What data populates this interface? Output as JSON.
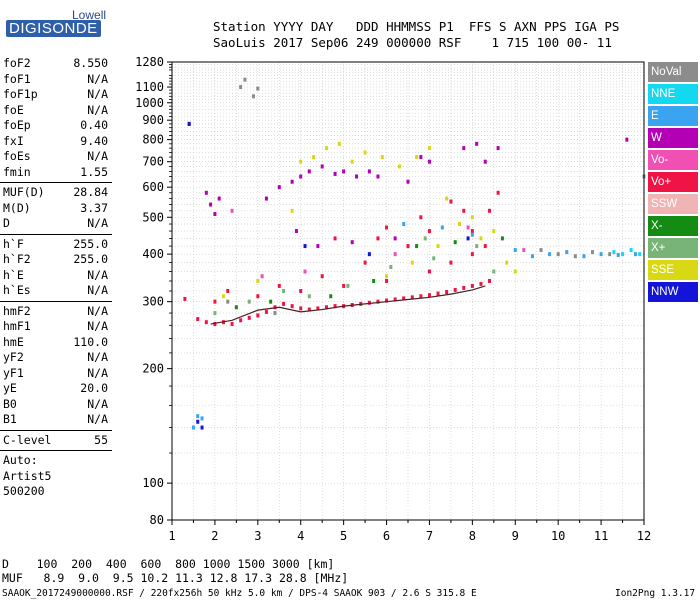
{
  "logo": {
    "top": "Lowell",
    "main": "DIGISONDE"
  },
  "header": {
    "line1": "Station YYYY DAY   DDD HHMMSS P1  FFS S AXN PPS IGA PS",
    "line2": "SaoLuis 2017 Sep06 249 000000 RSF    1 715 100 00- 11"
  },
  "params": [
    {
      "k": "foF2",
      "v": "8.550"
    },
    {
      "k": "foF1",
      "v": "N/A"
    },
    {
      "k": "foF1p",
      "v": "N/A"
    },
    {
      "k": "foE",
      "v": "N/A"
    },
    {
      "k": "foEp",
      "v": "0.40"
    },
    {
      "k": "fxI",
      "v": "9.40"
    },
    {
      "k": "foEs",
      "v": "N/A"
    },
    {
      "k": "fmin",
      "v": "1.55"
    },
    {
      "k": "MUF(D)",
      "v": "28.84"
    },
    {
      "k": "M(D)",
      "v": "3.37"
    },
    {
      "k": "D",
      "v": "N/A"
    },
    {
      "k": "h`F",
      "v": "255.0"
    },
    {
      "k": "h`F2",
      "v": "255.0"
    },
    {
      "k": "h`E",
      "v": "N/A"
    },
    {
      "k": "h`Es",
      "v": "N/A"
    },
    {
      "k": "hmF2",
      "v": "N/A"
    },
    {
      "k": "hmF1",
      "v": "N/A"
    },
    {
      "k": "hmE",
      "v": "110.0"
    },
    {
      "k": "yF2",
      "v": "N/A"
    },
    {
      "k": "yF1",
      "v": "N/A"
    },
    {
      "k": "yE",
      "v": "20.0"
    },
    {
      "k": "B0",
      "v": "N/A"
    },
    {
      "k": "B1",
      "v": "N/A"
    },
    {
      "k": "C-level",
      "v": "55"
    }
  ],
  "auto": [
    "Auto:",
    "Artist5",
    "500200"
  ],
  "legend": [
    {
      "label": "NoVal",
      "color": "#8c8c8c"
    },
    {
      "label": "NNE",
      "color": "#14d8f0"
    },
    {
      "label": "E",
      "color": "#3aa4f0"
    },
    {
      "label": "W",
      "color": "#b400b4"
    },
    {
      "label": "Vo-",
      "color": "#f050b4"
    },
    {
      "label": "Vo+",
      "color": "#f01446"
    },
    {
      "label": "SSW",
      "color": "#f0b4b4"
    },
    {
      "label": "X-",
      "color": "#148c14"
    },
    {
      "label": "X+",
      "color": "#78b478"
    },
    {
      "label": "SSE",
      "color": "#d8d814"
    },
    {
      "label": "NNW",
      "color": "#1414d8"
    }
  ],
  "footer": {
    "line1": "D    100  200  400  600  800 1000 1500 3000 [km]",
    "line2": "MUF   8.9  9.0  9.5 10.2 11.3 12.8 17.3 28.8 [MHz]",
    "file": "SAAOK_2017249000000.RSF / 220fx256h 50 kHz 5.0 km / DPS-4 SAAOK 903 / 2.6 S 315.8 E",
    "version": "Ion2Png 1.3.17"
  },
  "chart_data": {
    "type": "scatter",
    "title": "",
    "xlabel": "",
    "ylabel": "",
    "xlim": [
      1,
      12
    ],
    "ylim": [
      80,
      1280
    ],
    "y_scale": "log",
    "grid": true,
    "xticks": [
      1,
      2,
      3,
      4,
      5,
      6,
      7,
      8,
      9,
      10,
      11,
      12
    ],
    "yticks": [
      80,
      100,
      200,
      300,
      400,
      500,
      600,
      700,
      800,
      900,
      1000,
      1100,
      1280
    ],
    "series": [
      {
        "name": "Vo+",
        "color": "#f01446",
        "points": [
          [
            1.3,
            305
          ],
          [
            1.6,
            270
          ],
          [
            1.8,
            265
          ],
          [
            2.0,
            262
          ],
          [
            2.2,
            265
          ],
          [
            2.4,
            262
          ],
          [
            2.6,
            268
          ],
          [
            2.8,
            272
          ],
          [
            3.0,
            276
          ],
          [
            3.2,
            282
          ],
          [
            3.4,
            290
          ],
          [
            3.6,
            296
          ],
          [
            3.8,
            292
          ],
          [
            4.0,
            288
          ],
          [
            4.2,
            286
          ],
          [
            4.4,
            288
          ],
          [
            4.6,
            290
          ],
          [
            4.8,
            292
          ],
          [
            5.0,
            292
          ],
          [
            5.2,
            294
          ],
          [
            5.4,
            296
          ],
          [
            5.6,
            298
          ],
          [
            5.8,
            300
          ],
          [
            6.0,
            302
          ],
          [
            6.2,
            304
          ],
          [
            6.4,
            306
          ],
          [
            6.6,
            308
          ],
          [
            6.8,
            310
          ],
          [
            7.0,
            312
          ],
          [
            7.2,
            315
          ],
          [
            7.4,
            318
          ],
          [
            7.6,
            322
          ],
          [
            7.8,
            326
          ],
          [
            8.0,
            330
          ],
          [
            8.2,
            334
          ],
          [
            8.4,
            340
          ],
          [
            2.0,
            300
          ],
          [
            2.3,
            320
          ],
          [
            3.0,
            310
          ],
          [
            4.0,
            320
          ],
          [
            5.0,
            330
          ],
          [
            6.0,
            340
          ],
          [
            7.0,
            360
          ],
          [
            7.5,
            380
          ],
          [
            8.0,
            400
          ],
          [
            8.3,
            420
          ],
          [
            6.5,
            420
          ],
          [
            5.5,
            380
          ],
          [
            4.5,
            350
          ],
          [
            3.5,
            330
          ],
          [
            7.0,
            460
          ],
          [
            6.0,
            470
          ],
          [
            8.0,
            460
          ],
          [
            7.8,
            520
          ],
          [
            6.8,
            500
          ],
          [
            5.8,
            440
          ],
          [
            4.8,
            440
          ],
          [
            8.4,
            520
          ],
          [
            8.6,
            580
          ],
          [
            7.5,
            550
          ]
        ]
      },
      {
        "name": "W",
        "color": "#b400b4",
        "points": [
          [
            1.8,
            580
          ],
          [
            1.9,
            540
          ],
          [
            2.1,
            560
          ],
          [
            2.0,
            510
          ],
          [
            3.2,
            560
          ],
          [
            3.5,
            600
          ],
          [
            3.8,
            620
          ],
          [
            4.0,
            640
          ],
          [
            4.2,
            660
          ],
          [
            4.5,
            680
          ],
          [
            4.8,
            650
          ],
          [
            5.0,
            660
          ],
          [
            5.3,
            640
          ],
          [
            5.6,
            660
          ],
          [
            5.8,
            640
          ],
          [
            6.5,
            620
          ],
          [
            6.8,
            720
          ],
          [
            7.0,
            700
          ],
          [
            7.8,
            760
          ],
          [
            8.1,
            780
          ],
          [
            8.3,
            700
          ],
          [
            8.6,
            760
          ],
          [
            1.4,
            880
          ],
          [
            11.6,
            800
          ],
          [
            3.9,
            460
          ],
          [
            4.4,
            420
          ],
          [
            5.2,
            430
          ],
          [
            6.2,
            440
          ]
        ]
      },
      {
        "name": "SSE",
        "color": "#d8d814",
        "points": [
          [
            2.2,
            310
          ],
          [
            3.0,
            340
          ],
          [
            3.8,
            520
          ],
          [
            4.0,
            700
          ],
          [
            4.3,
            720
          ],
          [
            4.6,
            760
          ],
          [
            4.9,
            780
          ],
          [
            5.2,
            700
          ],
          [
            5.5,
            740
          ],
          [
            5.9,
            720
          ],
          [
            6.3,
            680
          ],
          [
            6.7,
            720
          ],
          [
            7.0,
            760
          ],
          [
            7.4,
            560
          ],
          [
            7.7,
            480
          ],
          [
            8.0,
            500
          ],
          [
            8.2,
            440
          ],
          [
            8.5,
            460
          ],
          [
            8.8,
            380
          ],
          [
            9.0,
            360
          ],
          [
            7.2,
            420
          ],
          [
            6.6,
            380
          ],
          [
            6.0,
            350
          ]
        ]
      },
      {
        "name": "X+",
        "color": "#78b478",
        "points": [
          [
            2.0,
            280
          ],
          [
            2.8,
            300
          ],
          [
            3.6,
            320
          ],
          [
            4.2,
            310
          ],
          [
            5.1,
            330
          ],
          [
            6.1,
            370
          ],
          [
            7.1,
            390
          ],
          [
            8.1,
            420
          ],
          [
            8.5,
            360
          ],
          [
            6.9,
            440
          ]
        ]
      },
      {
        "name": "X-",
        "color": "#148c14",
        "points": [
          [
            2.5,
            290
          ],
          [
            3.3,
            300
          ],
          [
            4.7,
            310
          ],
          [
            5.7,
            340
          ],
          [
            6.7,
            420
          ],
          [
            7.6,
            430
          ],
          [
            8.7,
            440
          ]
        ]
      },
      {
        "name": "E",
        "color": "#3aa4f0",
        "points": [
          [
            1.5,
            140
          ],
          [
            1.6,
            150
          ],
          [
            1.7,
            148
          ],
          [
            6.4,
            480
          ],
          [
            7.3,
            470
          ],
          [
            8.0,
            450
          ],
          [
            9.0,
            410
          ],
          [
            9.4,
            395
          ],
          [
            9.8,
            400
          ],
          [
            10.2,
            405
          ],
          [
            10.6,
            395
          ],
          [
            11.0,
            400
          ],
          [
            11.4,
            398
          ],
          [
            11.8,
            400
          ]
        ]
      },
      {
        "name": "NNE",
        "color": "#14d8f0",
        "points": [
          [
            11.3,
            405
          ],
          [
            11.5,
            400
          ],
          [
            11.7,
            410
          ],
          [
            11.9,
            400
          ]
        ]
      },
      {
        "name": "NNW",
        "color": "#1414d8",
        "points": [
          [
            1.4,
            880
          ],
          [
            1.6,
            145
          ],
          [
            1.7,
            140
          ],
          [
            4.1,
            420
          ],
          [
            5.6,
            400
          ],
          [
            7.9,
            440
          ]
        ]
      },
      {
        "name": "Vo-",
        "color": "#f050b4",
        "points": [
          [
            2.4,
            520
          ],
          [
            3.1,
            350
          ],
          [
            4.1,
            360
          ],
          [
            6.2,
            400
          ],
          [
            7.9,
            470
          ],
          [
            9.2,
            410
          ]
        ]
      },
      {
        "name": "NoVal",
        "color": "#8c8c8c",
        "points": [
          [
            2.6,
            1100
          ],
          [
            2.7,
            1150
          ],
          [
            2.9,
            1040
          ],
          [
            3.0,
            1090
          ],
          [
            9.6,
            410
          ],
          [
            10.0,
            400
          ],
          [
            10.4,
            395
          ],
          [
            10.8,
            405
          ],
          [
            11.2,
            400
          ],
          [
            2.3,
            300
          ],
          [
            3.4,
            280
          ],
          [
            12.0,
            640
          ]
        ]
      }
    ],
    "trace": {
      "name": "h`F2",
      "color": "#4a2020",
      "points": [
        [
          1.9,
          262
        ],
        [
          2.4,
          268
        ],
        [
          3.0,
          285
        ],
        [
          3.5,
          290
        ],
        [
          4.0,
          282
        ],
        [
          4.5,
          286
        ],
        [
          5.0,
          292
        ],
        [
          5.5,
          296
        ],
        [
          6.0,
          300
        ],
        [
          6.5,
          304
        ],
        [
          7.0,
          308
        ],
        [
          7.5,
          314
        ],
        [
          8.0,
          322
        ],
        [
          8.3,
          330
        ]
      ]
    }
  }
}
